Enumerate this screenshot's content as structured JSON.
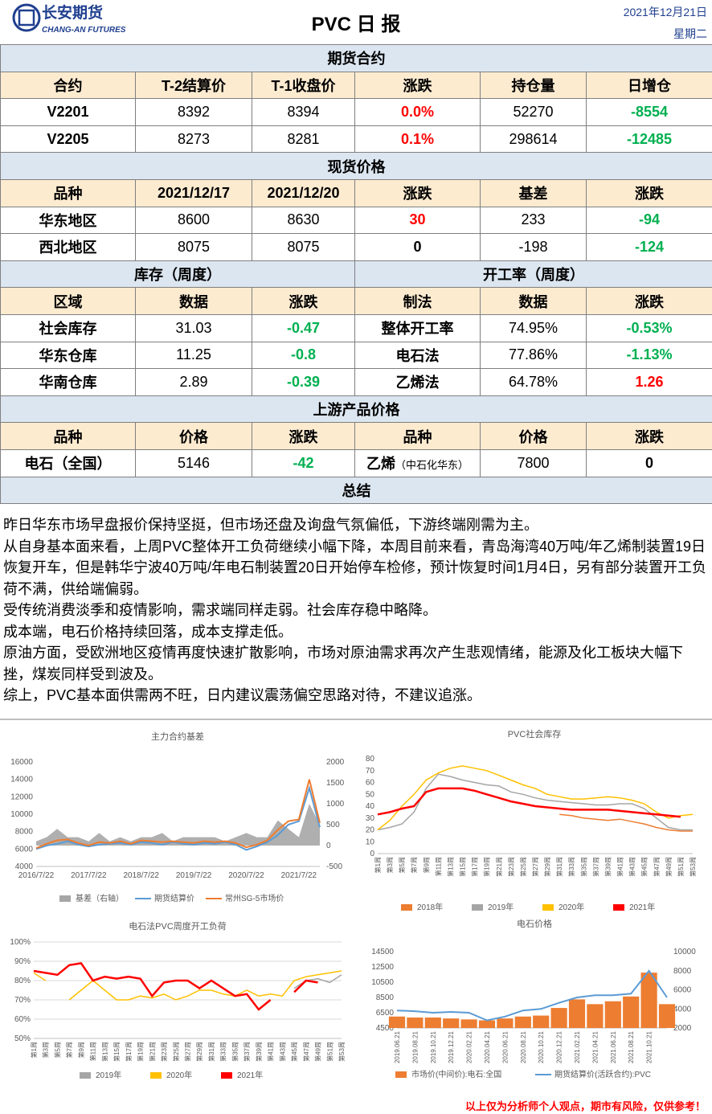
{
  "header": {
    "logo_cn": "长安期货",
    "logo_en": "CHANG-AN FUTURES",
    "title": "PVC 日 报",
    "date": "2021年12月21日",
    "weekday": "星期二"
  },
  "futures": {
    "section": "期货合约",
    "columns": [
      "合约",
      "T-2结算价",
      "T-1收盘价",
      "涨跌",
      "持仓量",
      "日增仓"
    ],
    "rows": [
      [
        "V2201",
        "8392",
        "8394",
        "0.0%",
        "52270",
        "-8554"
      ],
      [
        "V2205",
        "8273",
        "8281",
        "0.1%",
        "298614",
        "-12485"
      ]
    ]
  },
  "spot": {
    "section": "现货价格",
    "columns": [
      "品种",
      "2021/12/17",
      "2021/12/20",
      "涨跌",
      "基差",
      "涨跌"
    ],
    "rows": [
      [
        "华东地区",
        "8600",
        "8630",
        "30",
        "233",
        "-94"
      ],
      [
        "西北地区",
        "8075",
        "8075",
        "0",
        "-198",
        "-124"
      ]
    ]
  },
  "inventory": {
    "section": "库存（周度）",
    "columns": [
      "区域",
      "数据",
      "涨跌"
    ],
    "rows": [
      [
        "社会库存",
        "31.03",
        "-0.47"
      ],
      [
        "华东仓库",
        "11.25",
        "-0.8"
      ],
      [
        "华南仓库",
        "2.89",
        "-0.39"
      ]
    ]
  },
  "operating": {
    "section": "开工率（周度）",
    "columns": [
      "制法",
      "数据",
      "涨跌"
    ],
    "rows": [
      [
        "整体开工率",
        "74.95%",
        "-0.53%"
      ],
      [
        "电石法",
        "77.86%",
        "-1.13%"
      ],
      [
        "乙烯法",
        "64.78%",
        "1.26"
      ]
    ]
  },
  "upstream": {
    "section": "上游产品价格",
    "columns": [
      "品种",
      "价格",
      "涨跌",
      "品种",
      "价格",
      "涨跌"
    ],
    "row": [
      "电石（全国）",
      "5146",
      "-42",
      "乙烯",
      "7800",
      "0"
    ],
    "row_note": "（中石化华东）"
  },
  "summary": {
    "section": "总结",
    "paragraphs": [
      "昨日华东市场早盘报价保持坚挺，但市场还盘及询盘气氛偏低，下游终端刚需为主。",
      "从自身基本面来看，上周PVC整体开工负荷继续小幅下降，本周目前来看，青岛海湾40万吨/年乙烯制装置19日恢复开车，但是韩华宁波40万吨/年电石制装置20日开始停车检修，预计恢复时间1月4日，另有部分装置开工负荷不满，供给端偏弱。",
      "受传统消费淡季和疫情影响，需求端同样走弱。社会库存稳中略降。",
      "成本端，电石价格持续回落，成本支撑走低。",
      "原油方面，受欧洲地区疫情再度快速扩散影响，市场对原油需求再次产生悲观情绪，能源及化工板块大幅下挫，煤炭同样受到波及。",
      "综上，PVC基本面供需两不旺，日内建议震荡偏空思路对待，不建议追涨。"
    ]
  },
  "footer": "以上仅为分析师个人观点，期市有风险，仅供参考！",
  "chart_data": [
    {
      "type": "combo",
      "title": "主力合约基差",
      "categories": [
        "2016/7/22",
        null,
        null,
        null,
        null,
        "2017/7/22",
        null,
        null,
        null,
        null,
        "2018/7/22",
        null,
        null,
        null,
        null,
        "2019/7/22",
        null,
        null,
        null,
        null,
        "2020/7/22",
        null,
        null,
        null,
        null,
        "2021/7/22",
        null,
        null
      ],
      "ylim": [
        4000,
        16000
      ],
      "yticks": [
        4000,
        6000,
        8000,
        10000,
        12000,
        14000,
        16000
      ],
      "y2lim": [
        -500,
        2000
      ],
      "y2ticks": [
        -500,
        0,
        500,
        1000,
        1500,
        2000
      ],
      "series": [
        {
          "name": "基差（右轴）",
          "kind": "area",
          "axis": "y2",
          "color": "#a6a6a6",
          "values": [
            100,
            200,
            400,
            200,
            200,
            100,
            300,
            100,
            200,
            100,
            200,
            200,
            300,
            100,
            200,
            200,
            200,
            200,
            100,
            200,
            300,
            200,
            200,
            600,
            400,
            200,
            1000,
            500
          ]
        },
        {
          "name": "期货结算价",
          "kind": "line",
          "color": "#5b9bd5",
          "values": [
            6000,
            6400,
            6600,
            6900,
            6500,
            6300,
            6500,
            6600,
            6700,
            6500,
            6800,
            6700,
            6500,
            6800,
            6600,
            6500,
            6700,
            6600,
            6800,
            6500,
            5900,
            6300,
            6800,
            7600,
            8800,
            9200,
            13000,
            8500
          ]
        },
        {
          "name": "常州SG-5市场价",
          "kind": "line",
          "color": "#ed7d31",
          "values": [
            6100,
            6600,
            7000,
            7100,
            6700,
            6400,
            6800,
            6700,
            6900,
            6600,
            7000,
            6900,
            6800,
            6900,
            6800,
            6700,
            6900,
            6800,
            6900,
            6700,
            6200,
            6500,
            7000,
            8200,
            9200,
            9400,
            14000,
            9000
          ]
        }
      ]
    },
    {
      "type": "line",
      "title": "PVC社会库存",
      "categories": [
        "第1周",
        "第3周",
        "第5周",
        "第7周",
        "第9周",
        "第11周",
        "第13周",
        "第15周",
        "第17周",
        "第19周",
        "第21周",
        "第23周",
        "第25周",
        "第27周",
        "第29周",
        "第31周",
        "第33周",
        "第35周",
        "第37周",
        "第39周",
        "第41周",
        "第43周",
        "第45周",
        "第47周",
        "第49周",
        "第51周",
        "第53周"
      ],
      "ylim": [
        0,
        80
      ],
      "yticks": [
        0,
        10,
        20,
        30,
        40,
        50,
        60,
        70,
        80
      ],
      "series": [
        {
          "name": "2018年",
          "color": "#ed7d31",
          "width": 1.5,
          "values": [
            null,
            null,
            null,
            null,
            null,
            null,
            null,
            null,
            null,
            null,
            null,
            null,
            null,
            null,
            null,
            33,
            32,
            30,
            29,
            28,
            29,
            27,
            25,
            22,
            20,
            19,
            19
          ]
        },
        {
          "name": "2019年",
          "color": "#a5a5a5",
          "width": 1.5,
          "values": [
            20,
            22,
            25,
            35,
            55,
            67,
            65,
            62,
            60,
            58,
            57,
            52,
            50,
            47,
            45,
            44,
            43,
            42,
            41,
            41,
            42,
            42,
            38,
            30,
            22,
            20,
            20
          ]
        },
        {
          "name": "2020年",
          "color": "#ffc000",
          "width": 1.5,
          "values": [
            20,
            28,
            40,
            50,
            62,
            68,
            72,
            74,
            72,
            70,
            66,
            62,
            58,
            55,
            50,
            48,
            46,
            46,
            47,
            48,
            47,
            45,
            42,
            35,
            30,
            32,
            33
          ]
        },
        {
          "name": "2021年",
          "color": "#ff0000",
          "width": 2.5,
          "values": [
            33,
            35,
            38,
            40,
            52,
            55,
            55,
            55,
            53,
            50,
            47,
            44,
            42,
            40,
            39,
            38,
            37,
            37,
            37,
            37,
            36,
            35,
            34,
            33,
            32,
            31,
            null
          ]
        }
      ]
    },
    {
      "type": "line",
      "title": "电石法PVC周度开工负荷",
      "grid": true,
      "categories": [
        "第1周",
        "第3周",
        "第5周",
        "第7周",
        "第9周",
        "第11周",
        "第13周",
        "第15周",
        "第17周",
        "第19周",
        "第21周",
        "第23周",
        "第25周",
        "第27周",
        "第29周",
        "第31周",
        "第33周",
        "第35周",
        "第37周",
        "第39周",
        "第41周",
        "第43周",
        "第45周",
        "第47周",
        "第49周",
        "第51周",
        "第53周"
      ],
      "ylim": [
        50,
        100
      ],
      "yticks": [
        {
          "value": 50,
          "label": "50%"
        },
        {
          "value": 60,
          "label": "60%"
        },
        {
          "value": 70,
          "label": "70%"
        },
        {
          "value": 80,
          "label": "80%"
        },
        {
          "value": 90,
          "label": "90%"
        },
        {
          "value": 100,
          "label": "100%"
        }
      ],
      "series": [
        {
          "name": "2019年",
          "color": "#a5a5a5",
          "width": 1.5,
          "values": [
            null,
            null,
            null,
            null,
            null,
            null,
            null,
            null,
            null,
            null,
            null,
            null,
            null,
            null,
            null,
            null,
            null,
            null,
            null,
            null,
            null,
            null,
            76,
            80,
            81,
            79,
            83
          ]
        },
        {
          "name": "2020年",
          "color": "#ffc000",
          "width": 1.5,
          "values": [
            84,
            80,
            null,
            70,
            75,
            80,
            75,
            70,
            70,
            72,
            71,
            73,
            70,
            72,
            75,
            75,
            73,
            72,
            75,
            72,
            73,
            72,
            80,
            82,
            83,
            84,
            85
          ]
        },
        {
          "name": "2021年",
          "color": "#ff0000",
          "width": 2.5,
          "values": [
            85,
            84,
            83,
            88,
            89,
            80,
            82,
            81,
            82,
            81,
            72,
            79,
            80,
            80,
            76,
            80,
            76,
            72,
            73,
            65,
            70,
            null,
            74,
            80,
            79,
            null,
            null
          ]
        }
      ]
    },
    {
      "type": "combo",
      "title": "电石价格",
      "categories": [
        "2019.06.21",
        "2019.08.21",
        "2019.10.21",
        "2019.12.21",
        "2020.02.21",
        "2020.04.21",
        "2020.06.21",
        "2020.08.21",
        "2020.10.21",
        "2020.12.21",
        "2021.02.21",
        "2021.04.21",
        "2021.06.21",
        "2021.08.21",
        "2021.10.21",
        null
      ],
      "ylim": [
        4500,
        14500
      ],
      "yticks": [
        4500,
        6500,
        8500,
        10500,
        12500,
        14500
      ],
      "y2lim": [
        2000,
        10000
      ],
      "y2ticks": [
        2000,
        4000,
        6000,
        8000,
        10000
      ],
      "series": [
        {
          "name": "市场价(中间价):电石:全国",
          "kind": "bar",
          "axis": "y2",
          "color": "#ed7d31",
          "values": [
            3200,
            3100,
            3100,
            3000,
            2900,
            2800,
            3000,
            3200,
            3300,
            4100,
            5000,
            4500,
            4800,
            5300,
            7800,
            4500
          ]
        },
        {
          "name": "期货结算价(活跃合约):PVC",
          "kind": "line",
          "color": "#5b9bd5",
          "values": [
            6800,
            6700,
            6500,
            6600,
            6500,
            5500,
            6000,
            6800,
            7000,
            7800,
            8500,
            8800,
            8800,
            9000,
            12000,
            8500
          ]
        }
      ]
    }
  ]
}
